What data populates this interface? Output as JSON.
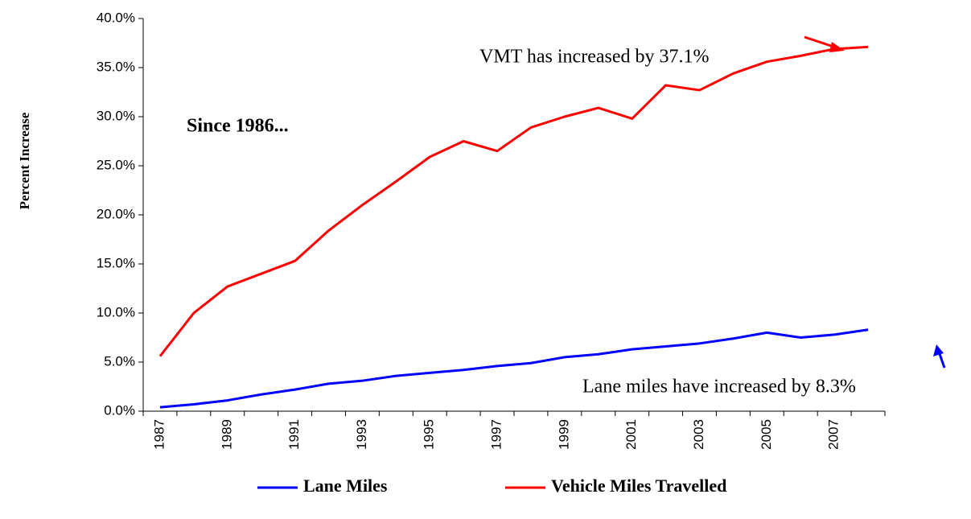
{
  "chart_data": {
    "type": "line",
    "y_label": "Percent Increase",
    "annotations": [
      "Since 1986...",
      "VMT has increased by 37.1%",
      "Lane miles have increased by 8.3%"
    ],
    "categories": [
      "1987",
      null,
      "1989",
      null,
      "1991",
      null,
      "1993",
      null,
      "1995",
      null,
      "1997",
      null,
      "1999",
      null,
      "2001",
      null,
      "2003",
      null,
      "2005",
      null,
      "2007",
      null
    ],
    "series": [
      {
        "name": "Lane Miles",
        "color": "#0000ff",
        "values": [
          0.4,
          0.7,
          1.1,
          1.7,
          2.2,
          2.8,
          3.1,
          3.6,
          3.9,
          4.2,
          4.6,
          4.9,
          5.5,
          5.8,
          6.3,
          6.6,
          6.9,
          7.4,
          8.0,
          7.5,
          7.8,
          8.3
        ]
      },
      {
        "name": "Vehicle Miles Travelled",
        "color": "#ff0000",
        "values": [
          5.6,
          10.0,
          12.7,
          14.0,
          15.3,
          18.4,
          21.0,
          23.4,
          25.9,
          27.5,
          26.5,
          28.9,
          30.0,
          30.9,
          29.8,
          33.2,
          32.7,
          34.4,
          35.6,
          36.2,
          36.9,
          37.1
        ]
      }
    ],
    "ylim": [
      0,
      40
    ],
    "yticks": [
      {
        "value": 0,
        "label": "0.0%"
      },
      {
        "value": 5,
        "label": "5.0%"
      },
      {
        "value": 10,
        "label": "10.0%"
      },
      {
        "value": 15,
        "label": "15.0%"
      },
      {
        "value": 20,
        "label": "20.0%"
      },
      {
        "value": 25,
        "label": "25.0%"
      },
      {
        "value": 30,
        "label": "30.0%"
      },
      {
        "value": 35,
        "label": "35.0%"
      },
      {
        "value": 40,
        "label": "40.0%"
      }
    ],
    "grid": false,
    "legend": "bottom"
  }
}
